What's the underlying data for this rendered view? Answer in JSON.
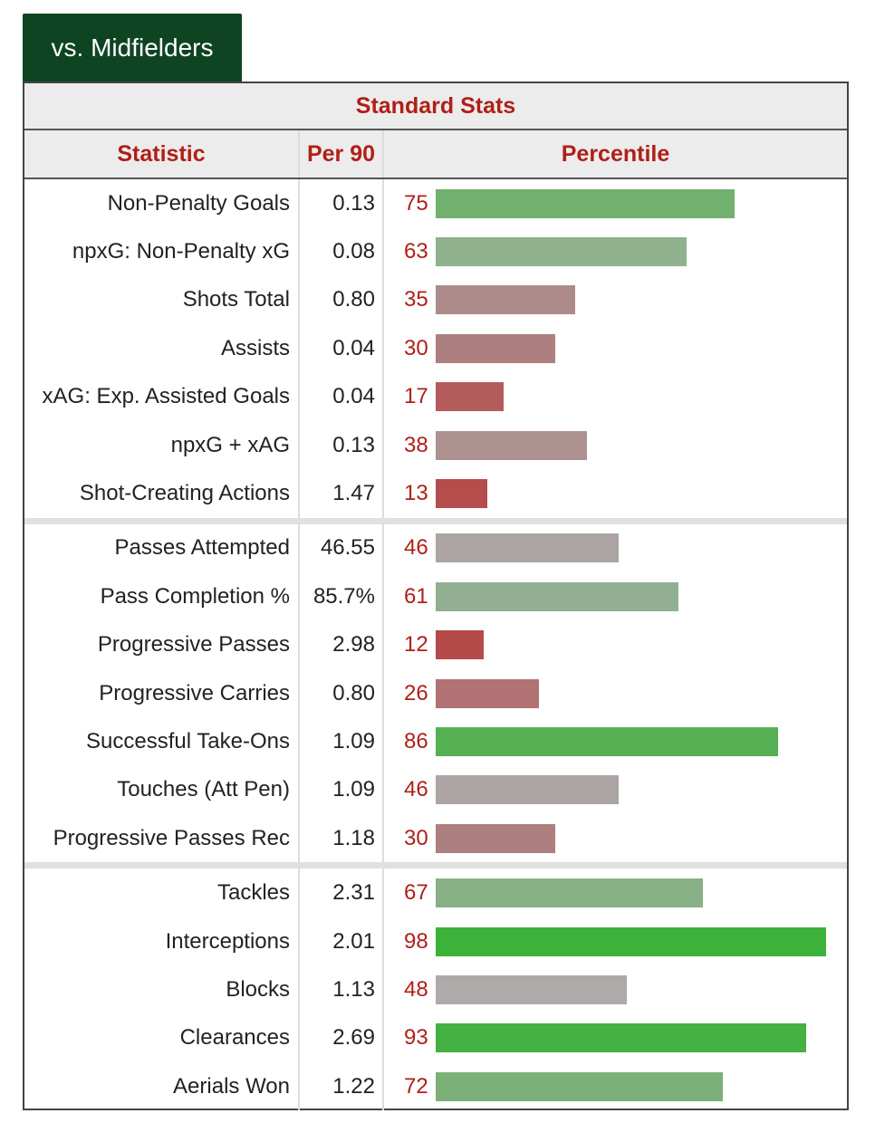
{
  "tab": {
    "label": "vs. Midfielders"
  },
  "table": {
    "section_title": "Standard Stats",
    "headers": {
      "statistic": "Statistic",
      "per90": "Per 90",
      "percentile": "Percentile"
    },
    "groups": [
      [
        {
          "stat": "Non-Penalty Goals",
          "per90": "0.13",
          "percentile": 75,
          "color": "#72b06e"
        },
        {
          "stat": "npxG: Non-Penalty xG",
          "per90": "0.08",
          "percentile": 63,
          "color": "#8fb28c"
        },
        {
          "stat": "Shots Total",
          "per90": "0.80",
          "percentile": 35,
          "color": "#ad8b8b"
        },
        {
          "stat": "Assists",
          "per90": "0.04",
          "percentile": 30,
          "color": "#ae7f7f"
        },
        {
          "stat": "xAG: Exp. Assisted Goals",
          "per90": "0.04",
          "percentile": 17,
          "color": "#b45c5c"
        },
        {
          "stat": "npxG + xAG",
          "per90": "0.13",
          "percentile": 38,
          "color": "#ae9292"
        },
        {
          "stat": "Shot-Creating Actions",
          "per90": "1.47",
          "percentile": 13,
          "color": "#b54d4d"
        }
      ],
      [
        {
          "stat": "Passes Attempted",
          "per90": "46.55",
          "percentile": 46,
          "color": "#ada4a4"
        },
        {
          "stat": "Pass Completion %",
          "per90": "85.7%",
          "percentile": 61,
          "color": "#93af91"
        },
        {
          "stat": "Progressive Passes",
          "per90": "2.98",
          "percentile": 12,
          "color": "#b54a4a"
        },
        {
          "stat": "Progressive Carries",
          "per90": "0.80",
          "percentile": 26,
          "color": "#b07272"
        },
        {
          "stat": "Successful Take-Ons",
          "per90": "1.09",
          "percentile": 86,
          "color": "#55b153"
        },
        {
          "stat": "Touches (Att Pen)",
          "per90": "1.09",
          "percentile": 46,
          "color": "#ada4a4"
        },
        {
          "stat": "Progressive Passes Rec",
          "per90": "1.18",
          "percentile": 30,
          "color": "#ae7f7f"
        }
      ],
      [
        {
          "stat": "Tackles",
          "per90": "2.31",
          "percentile": 67,
          "color": "#87b184"
        },
        {
          "stat": "Interceptions",
          "per90": "2.01",
          "percentile": 98,
          "color": "#3db23a"
        },
        {
          "stat": "Blocks",
          "per90": "1.13",
          "percentile": 48,
          "color": "#aeaaaa"
        },
        {
          "stat": "Clearances",
          "per90": "2.69",
          "percentile": 93,
          "color": "#45b142"
        },
        {
          "stat": "Aerials Won",
          "per90": "1.22",
          "percentile": 72,
          "color": "#7cb079"
        }
      ]
    ]
  }
}
